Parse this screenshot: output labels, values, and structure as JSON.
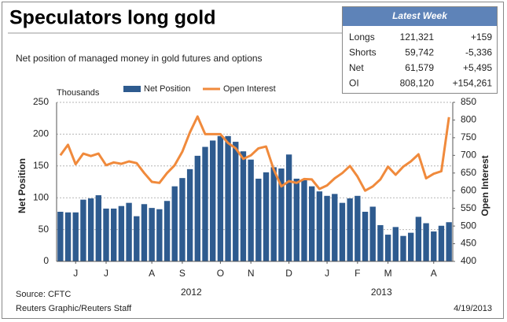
{
  "chart_data": {
    "type": "bar_line",
    "title": "Speculators long gold",
    "subtitle": "Net position of managed money in gold futures and options",
    "y_unit": "Thousands",
    "ylabel": "Net Position",
    "y2label": "Open Interest",
    "x_groups": [
      "2012",
      "2013"
    ],
    "categories": [
      null,
      null,
      "J",
      null,
      null,
      null,
      "J",
      null,
      null,
      null,
      null,
      null,
      "A",
      null,
      null,
      null,
      "S",
      null,
      null,
      null,
      null,
      "O",
      null,
      null,
      null,
      "N",
      null,
      null,
      null,
      null,
      "D",
      null,
      null,
      null,
      null,
      "J",
      null,
      null,
      null,
      "F",
      null,
      null,
      null,
      "M",
      null,
      null,
      null,
      null,
      null,
      "A",
      null,
      null
    ],
    "series": [
      {
        "name": "Net Position",
        "color": "#2e5b8f",
        "axis": "y",
        "values": [
          78,
          77,
          77,
          97,
          99,
          104,
          83,
          83,
          87,
          92,
          71,
          90,
          84,
          82,
          95,
          118,
          131,
          145,
          166,
          180,
          190,
          197,
          197,
          188,
          173,
          160,
          130,
          140,
          148,
          146,
          168,
          130,
          128,
          118,
          110,
          103,
          106,
          92,
          99,
          103,
          78,
          86,
          57,
          42,
          54,
          40,
          45,
          70,
          60,
          47,
          56,
          61.579
        ]
      },
      {
        "name": "Open Interest",
        "color": "#f08a3c",
        "axis": "y2",
        "values": [
          700,
          730,
          675,
          705,
          698,
          705,
          672,
          680,
          676,
          683,
          678,
          650,
          625,
          622,
          650,
          672,
          710,
          765,
          810,
          760,
          760,
          760,
          735,
          720,
          690,
          700,
          720,
          725,
          660,
          612,
          627,
          622,
          633,
          632,
          605,
          615,
          635,
          650,
          670,
          640,
          600,
          612,
          632,
          668,
          645,
          668,
          683,
          703,
          635,
          648,
          655,
          808.12
        ]
      }
    ],
    "ylim": [
      0,
      250
    ],
    "yticks": [
      0,
      50,
      100,
      150,
      200,
      250
    ],
    "y2lim": [
      400,
      850
    ],
    "y2ticks": [
      400,
      450,
      500,
      550,
      600,
      650,
      700,
      750,
      800,
      850
    ],
    "grid": true,
    "legend": "top"
  },
  "latest_week": {
    "title": "Latest Week",
    "rows": [
      [
        "Longs",
        "121,321",
        "+159"
      ],
      [
        "Shorts",
        "59,742",
        "-5,336"
      ],
      [
        "Net",
        "61,579",
        "+5,495"
      ],
      [
        "OI",
        "808,120",
        "+154,261"
      ]
    ]
  },
  "footer": {
    "source": "Source: CFTC",
    "credit": "Reuters Graphic/Reuters Staff",
    "date": "4/19/2013"
  }
}
